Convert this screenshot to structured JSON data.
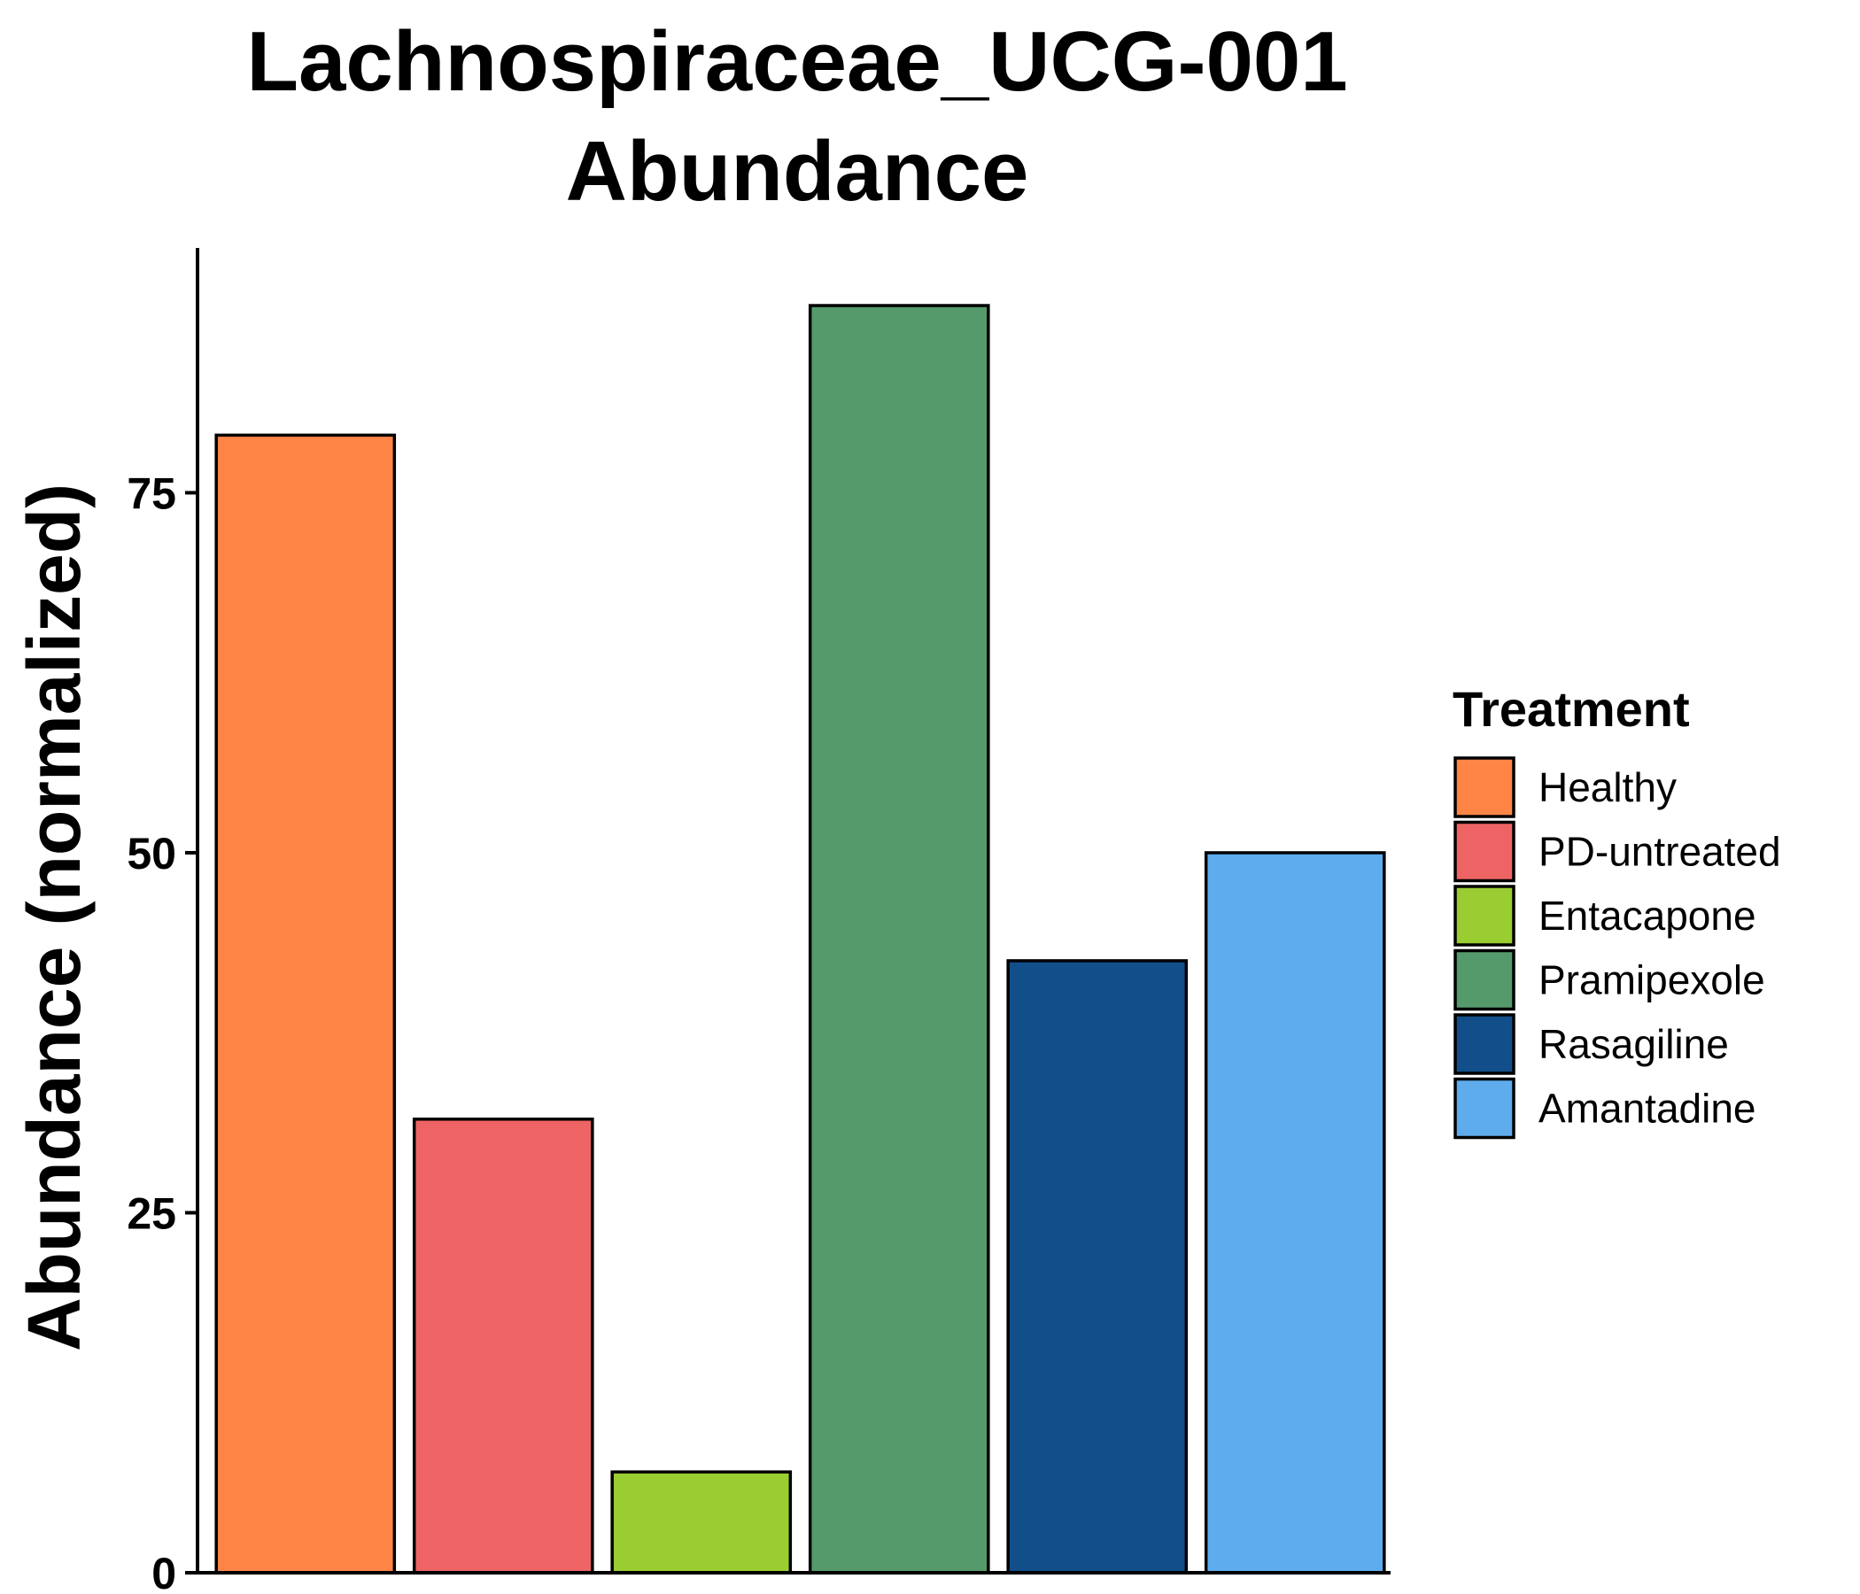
{
  "chart_data": {
    "type": "bar",
    "title_lines": [
      "Lachnospiraceae_UCG-001",
      "Abundance"
    ],
    "xlabel": "",
    "ylabel": "Abundance (normalized)",
    "ylim": [
      0,
      92
    ],
    "yticks": [
      0,
      25,
      50,
      75
    ],
    "ytick_labels": [
      "0",
      "25",
      "50",
      "75"
    ],
    "grid": false,
    "legend": {
      "title": "Treatment",
      "placement": "right"
    },
    "categories": [
      "Healthy",
      "PD-untreated",
      "Entacapone",
      "Pramipexole",
      "Rasagiline",
      "Amantadine"
    ],
    "values": [
      79,
      31.5,
      7,
      88,
      42.5,
      50
    ],
    "colors": [
      "#FF8547",
      "#EE6464",
      "#9ACD32",
      "#559A6A",
      "#124F8A",
      "#5EACEE"
    ]
  }
}
